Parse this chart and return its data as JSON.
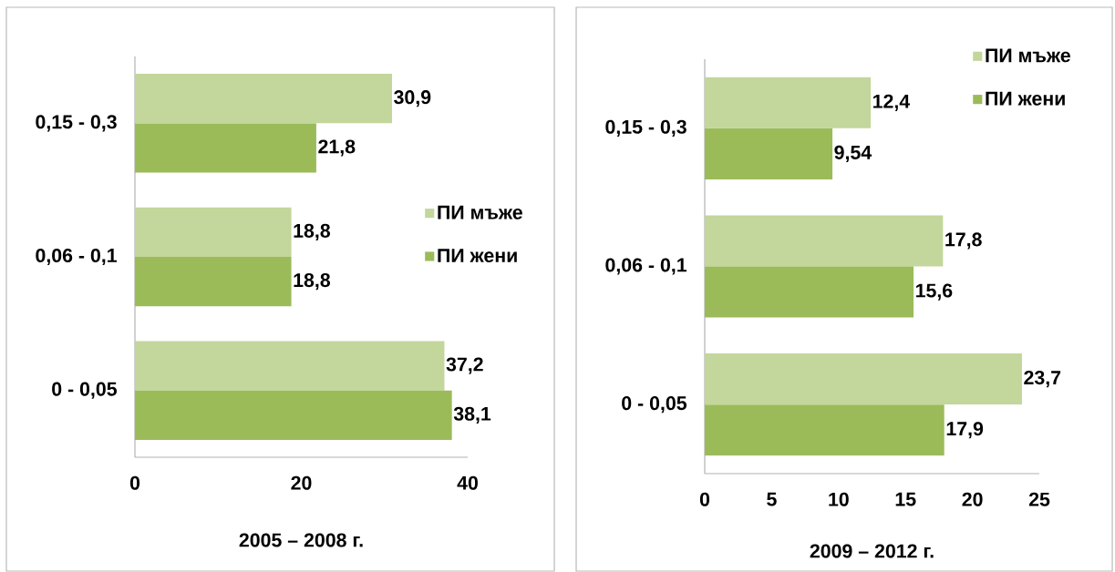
{
  "chart_data": [
    {
      "type": "bar",
      "orientation": "horizontal",
      "xlabel": "2005 – 2008 г.",
      "categories": [
        "0,15 - 0,3",
        "0,06 - 0,1",
        "0 - 0,05"
      ],
      "series": [
        {
          "name": "ПИ мъже",
          "color": "#c3d69b",
          "values": [
            30.9,
            18.8,
            37.2
          ],
          "value_labels": [
            "30,9",
            "18,8",
            "37,2"
          ]
        },
        {
          "name": "ПИ жени",
          "color": "#9bbb59",
          "values": [
            21.8,
            18.8,
            38.1
          ],
          "value_labels": [
            "21,8",
            "18,8",
            "38,1"
          ]
        }
      ],
      "xlim": [
        0,
        40
      ],
      "xticks": [
        0,
        20,
        40
      ],
      "legend": "right"
    },
    {
      "type": "bar",
      "orientation": "horizontal",
      "xlabel": "2009 – 2012 г.",
      "categories": [
        "0,15 - 0,3",
        "0,06 - 0,1",
        "0 - 0,05"
      ],
      "series": [
        {
          "name": "ПИ мъже",
          "color": "#c3d69b",
          "values": [
            12.4,
            17.8,
            23.7
          ],
          "value_labels": [
            "12,4",
            "17,8",
            "23,7"
          ]
        },
        {
          "name": "ПИ жени",
          "color": "#9bbb59",
          "values": [
            9.54,
            15.6,
            17.9
          ],
          "value_labels": [
            "9,54",
            "15,6",
            "17,9"
          ]
        }
      ],
      "xlim": [
        0,
        25
      ],
      "xticks": [
        0,
        5,
        10,
        15,
        20,
        25
      ],
      "legend": "top right"
    }
  ]
}
